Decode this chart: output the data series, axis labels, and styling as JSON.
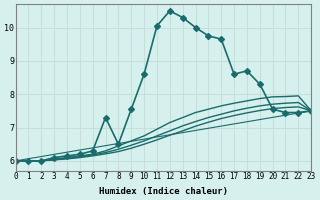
{
  "xlabel": "Humidex (Indice chaleur)",
  "ylabel": "",
  "background_color": "#d6f0ee",
  "grid_color": "#c8dedd",
  "line_color": "#1a6b6b",
  "xlim": [
    0,
    23
  ],
  "ylim": [
    5.7,
    10.7
  ],
  "xtick_labels": [
    "0",
    "1",
    "2",
    "3",
    "4",
    "5",
    "6",
    "7",
    "8",
    "9",
    "10",
    "11",
    "12",
    "13",
    "14",
    "15",
    "16",
    "17",
    "18",
    "19",
    "20",
    "21",
    "22",
    "23"
  ],
  "ytick_labels": [
    "6",
    "7",
    "8",
    "9",
    "10"
  ],
  "ytick_values": [
    6,
    7,
    8,
    9,
    10
  ],
  "lines": [
    {
      "x": [
        0,
        1,
        2,
        3,
        4,
        5,
        6,
        7,
        8,
        9,
        10,
        11,
        12,
        13,
        14,
        15,
        16,
        17,
        18,
        19,
        20,
        21,
        22,
        23
      ],
      "y": [
        6.0,
        6.0,
        6.0,
        6.1,
        6.15,
        6.2,
        6.3,
        7.3,
        6.5,
        7.55,
        8.6,
        10.05,
        10.5,
        10.3,
        10.0,
        9.75,
        9.65,
        8.6,
        8.7,
        8.3,
        7.55,
        7.45,
        7.45,
        7.5
      ],
      "marker": "D",
      "markersize": 3,
      "linewidth": 1.2
    },
    {
      "x": [
        0,
        1,
        2,
        3,
        4,
        5,
        6,
        7,
        8,
        9,
        10,
        11,
        12,
        13,
        14,
        15,
        16,
        17,
        18,
        19,
        20,
        21,
        22,
        23
      ],
      "y": [
        6.0,
        6.0,
        6.0,
        6.05,
        6.1,
        6.15,
        6.2,
        6.3,
        6.45,
        6.6,
        6.75,
        6.95,
        7.15,
        7.3,
        7.45,
        7.55,
        7.65,
        7.73,
        7.8,
        7.87,
        7.92,
        7.93,
        7.95,
        7.5
      ],
      "marker": null,
      "markersize": 0,
      "linewidth": 1.0
    },
    {
      "x": [
        0,
        1,
        2,
        3,
        4,
        5,
        6,
        7,
        8,
        9,
        10,
        11,
        12,
        13,
        14,
        15,
        16,
        17,
        18,
        19,
        20,
        21,
        22,
        23
      ],
      "y": [
        6.0,
        6.0,
        6.0,
        6.04,
        6.08,
        6.12,
        6.18,
        6.25,
        6.35,
        6.47,
        6.6,
        6.75,
        6.9,
        7.05,
        7.18,
        7.3,
        7.4,
        7.5,
        7.58,
        7.65,
        7.7,
        7.73,
        7.75,
        7.5
      ],
      "marker": null,
      "markersize": 0,
      "linewidth": 1.0
    },
    {
      "x": [
        0,
        1,
        2,
        3,
        4,
        5,
        6,
        7,
        8,
        9,
        10,
        11,
        12,
        13,
        14,
        15,
        16,
        17,
        18,
        19,
        20,
        21,
        22,
        23
      ],
      "y": [
        6.0,
        6.0,
        6.0,
        6.03,
        6.06,
        6.1,
        6.15,
        6.21,
        6.28,
        6.38,
        6.5,
        6.63,
        6.77,
        6.9,
        7.04,
        7.16,
        7.27,
        7.36,
        7.44,
        7.51,
        7.57,
        7.6,
        7.62,
        7.5
      ],
      "marker": null,
      "markersize": 0,
      "linewidth": 1.0
    },
    {
      "x": [
        0,
        23
      ],
      "y": [
        6.0,
        7.5
      ],
      "marker": null,
      "markersize": 0,
      "linewidth": 0.8
    }
  ]
}
